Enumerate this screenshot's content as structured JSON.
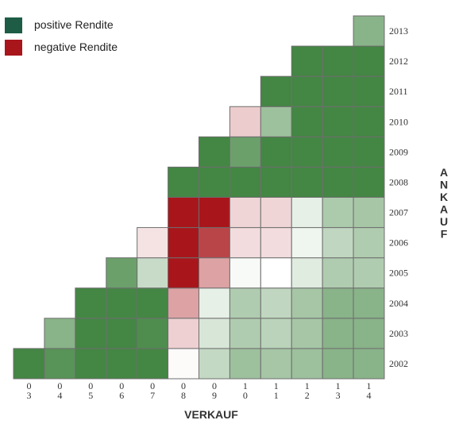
{
  "chart_data": {
    "type": "heatmap",
    "title": "",
    "xlabel": "VERKAUF",
    "ylabel": "ANKAUF",
    "legend": {
      "placement": "top-left",
      "entries": [
        {
          "label": "positive Rendite",
          "color": "#1e5c45"
        },
        {
          "label": "negative Rendite",
          "color": "#a8161c"
        }
      ]
    },
    "x_categories": [
      "03",
      "04",
      "05",
      "06",
      "07",
      "08",
      "09",
      "10",
      "11",
      "12",
      "13",
      "14"
    ],
    "y_categories": [
      "2002",
      "2003",
      "2004",
      "2005",
      "2006",
      "2007",
      "2008",
      "2009",
      "2010",
      "2011",
      "2012",
      "2013"
    ],
    "intensity_note_scale": [
      -1,
      1
    ],
    "rows": [
      {
        "ankauf": "2002",
        "values": [
          0.95,
          0.85,
          0.95,
          0.95,
          0.95,
          -0.02,
          0.3,
          0.5,
          0.45,
          0.5,
          0.6,
          0.6
        ]
      },
      {
        "ankauf": "2003",
        "values": [
          null,
          0.6,
          0.95,
          0.95,
          0.9,
          -0.2,
          0.2,
          0.4,
          0.35,
          0.45,
          0.6,
          0.6
        ]
      },
      {
        "ankauf": "2004",
        "values": [
          null,
          null,
          0.95,
          0.95,
          0.95,
          -0.4,
          0.12,
          0.4,
          0.32,
          0.45,
          0.6,
          0.6
        ]
      },
      {
        "ankauf": "2005",
        "values": [
          null,
          null,
          null,
          0.75,
          0.28,
          -1.0,
          -0.4,
          0.04,
          0.0,
          0.15,
          0.4,
          0.4
        ]
      },
      {
        "ankauf": "2006",
        "values": [
          null,
          null,
          null,
          null,
          -0.12,
          -1.0,
          -0.8,
          -0.15,
          -0.15,
          0.08,
          0.32,
          0.4
        ]
      },
      {
        "ankauf": "2007",
        "values": [
          null,
          null,
          null,
          null,
          null,
          -1.0,
          -1.0,
          -0.18,
          -0.18,
          0.12,
          0.42,
          0.45
        ]
      },
      {
        "ankauf": "2008",
        "values": [
          null,
          null,
          null,
          null,
          null,
          0.95,
          0.95,
          0.95,
          0.95,
          0.95,
          0.95,
          0.95
        ]
      },
      {
        "ankauf": "2009",
        "values": [
          null,
          null,
          null,
          null,
          null,
          null,
          0.95,
          0.75,
          0.95,
          0.95,
          0.95,
          0.95
        ]
      },
      {
        "ankauf": "2010",
        "values": [
          null,
          null,
          null,
          null,
          null,
          null,
          null,
          -0.22,
          0.5,
          0.95,
          0.95,
          0.95
        ]
      },
      {
        "ankauf": "2011",
        "values": [
          null,
          null,
          null,
          null,
          null,
          null,
          null,
          null,
          0.95,
          0.95,
          0.95,
          0.95
        ]
      },
      {
        "ankauf": "2012",
        "values": [
          null,
          null,
          null,
          null,
          null,
          null,
          null,
          null,
          null,
          0.95,
          0.95,
          0.95
        ]
      },
      {
        "ankauf": "2013",
        "values": [
          null,
          null,
          null,
          null,
          null,
          null,
          null,
          null,
          null,
          null,
          null,
          0.6
        ]
      }
    ]
  }
}
